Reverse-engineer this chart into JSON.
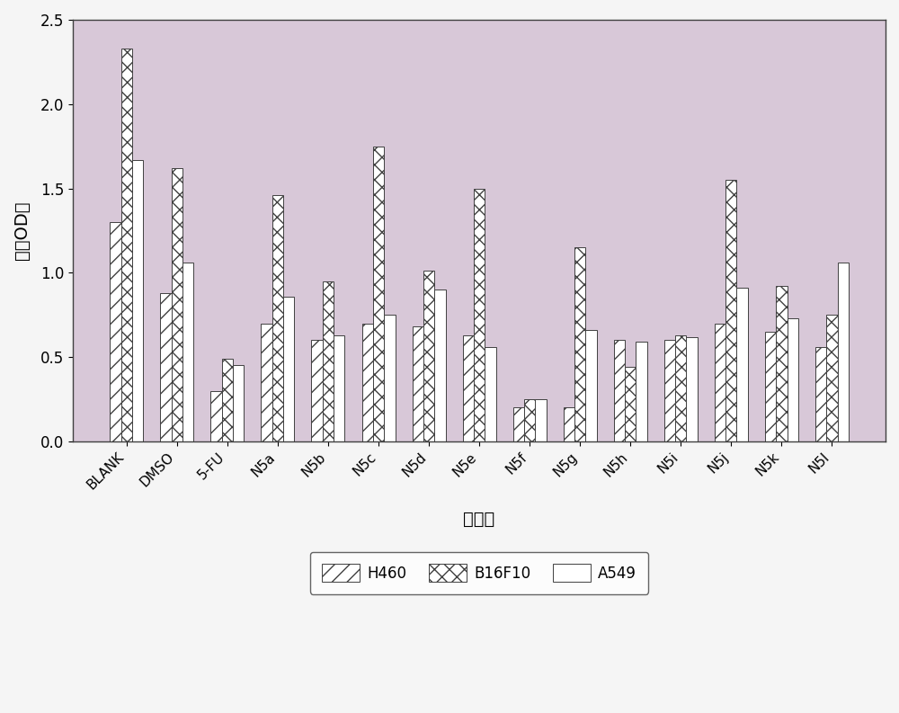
{
  "categories": [
    "BLANK",
    "DMSO",
    "5-FU",
    "N5a",
    "N5b",
    "N5c",
    "N5d",
    "N5e",
    "N5f",
    "N5g",
    "N5h",
    "N5i",
    "N5j",
    "N5k",
    "N5l"
  ],
  "H460": [
    1.3,
    0.88,
    0.3,
    0.7,
    0.6,
    0.7,
    0.68,
    0.63,
    0.2,
    0.2,
    0.6,
    0.6,
    0.7,
    0.65,
    0.56
  ],
  "B16F10": [
    2.33,
    1.62,
    0.49,
    1.46,
    0.95,
    1.75,
    1.01,
    1.5,
    0.25,
    1.15,
    0.44,
    0.63,
    1.55,
    0.92,
    0.75
  ],
  "A549": [
    1.67,
    1.06,
    0.45,
    0.86,
    0.63,
    0.75,
    0.9,
    0.56,
    0.25,
    0.66,
    0.59,
    0.62,
    0.91,
    0.73,
    1.06
  ],
  "ylabel": "平均OD値",
  "xlabel": "化合物",
  "ylim": [
    0,
    2.5
  ],
  "yticks": [
    0,
    0.5,
    1.0,
    1.5,
    2.0,
    2.5
  ],
  "fig_bg_color": "#f0f0f0",
  "plot_bg_color": "#d8c8d8",
  "bar_edge_color": "#404040",
  "bar_width": 0.22
}
